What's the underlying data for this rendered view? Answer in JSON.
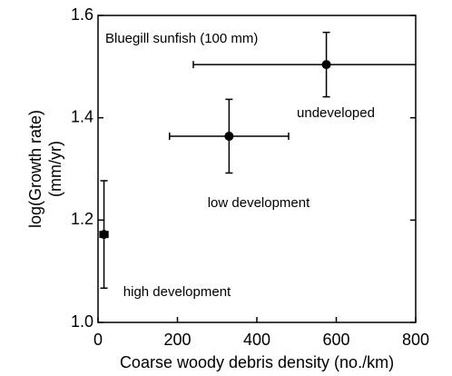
{
  "chart_data": {
    "type": "scatter",
    "annotation": "Bluegill sunfish (100 mm)",
    "xlabel": "Coarse woody debris density (no./km)",
    "ylabel": [
      "log(Growth rate)",
      "(mm/yr)"
    ],
    "x": [
      15,
      330,
      575
    ],
    "values": [
      1.172,
      1.364,
      1.504
    ],
    "xerr": [
      10,
      150,
      335
    ],
    "yerr": [
      0.105,
      0.072,
      0.063
    ],
    "labels": [
      "high development",
      "low development",
      "undeveloped"
    ],
    "color": "#000000",
    "xlim": [
      0,
      800
    ],
    "xticks": [
      0,
      200,
      400,
      600,
      800
    ],
    "ylim": [
      1.0,
      1.6
    ],
    "yticks": [
      {
        "value": 1.0,
        "label": "1.0"
      },
      1.2,
      1.4,
      1.6
    ]
  }
}
